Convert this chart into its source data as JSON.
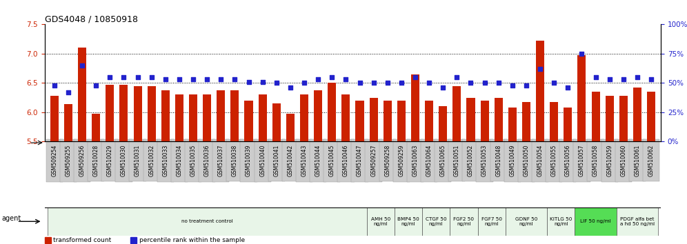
{
  "title": "GDS4048 / 10850918",
  "xlabels": [
    "GSM509254",
    "GSM509255",
    "GSM509256",
    "GSM510028",
    "GSM510029",
    "GSM510030",
    "GSM510031",
    "GSM510032",
    "GSM510033",
    "GSM510034",
    "GSM510035",
    "GSM510036",
    "GSM510037",
    "GSM510038",
    "GSM510039",
    "GSM510040",
    "GSM510041",
    "GSM510042",
    "GSM510043",
    "GSM510044",
    "GSM510045",
    "GSM510046",
    "GSM510047",
    "GSM509257",
    "GSM509258",
    "GSM509259",
    "GSM510063",
    "GSM510064",
    "GSM510065",
    "GSM510051",
    "GSM510052",
    "GSM510053",
    "GSM510048",
    "GSM510049",
    "GSM510050",
    "GSM510054",
    "GSM510055",
    "GSM510056",
    "GSM510057",
    "GSM510058",
    "GSM510059",
    "GSM510060",
    "GSM510061",
    "GSM510062"
  ],
  "bar_values": [
    6.28,
    6.14,
    7.1,
    5.98,
    6.47,
    6.47,
    6.44,
    6.44,
    6.37,
    6.3,
    6.3,
    6.3,
    6.37,
    6.37,
    6.2,
    6.3,
    6.15,
    5.97,
    6.3,
    6.37,
    6.5,
    6.3,
    6.2,
    6.25,
    6.2,
    6.2,
    6.65,
    6.2,
    6.1,
    6.44,
    6.25,
    6.2,
    6.25,
    6.08,
    6.18,
    7.22,
    6.18,
    6.08,
    6.97,
    6.35,
    6.28,
    6.28,
    6.42,
    6.35
  ],
  "percentile_values": [
    48,
    42,
    65,
    48,
    55,
    55,
    55,
    55,
    53,
    53,
    53,
    53,
    53,
    53,
    51,
    51,
    50,
    46,
    50,
    53,
    55,
    53,
    50,
    50,
    50,
    50,
    55,
    50,
    46,
    55,
    50,
    50,
    50,
    48,
    48,
    62,
    50,
    46,
    75,
    55,
    53,
    53,
    55,
    53
  ],
  "ylim_left": [
    5.5,
    7.5
  ],
  "ylim_right": [
    0,
    100
  ],
  "yticks_left": [
    5.5,
    6.0,
    6.5,
    7.0,
    7.5
  ],
  "yticks_right": [
    0,
    25,
    50,
    75,
    100
  ],
  "bar_color": "#cc2200",
  "dot_color": "#2222cc",
  "gridline_color": "#333333",
  "agent_groups": [
    {
      "label": "no treatment control",
      "start": 0,
      "end": 23,
      "color": "#e8f5e8"
    },
    {
      "label": "AMH 50\nng/ml",
      "start": 23,
      "end": 25,
      "color": "#e8f5e8"
    },
    {
      "label": "BMP4 50\nng/ml",
      "start": 25,
      "end": 27,
      "color": "#e8f5e8"
    },
    {
      "label": "CTGF 50\nng/ml",
      "start": 27,
      "end": 29,
      "color": "#e8f5e8"
    },
    {
      "label": "FGF2 50\nng/ml",
      "start": 29,
      "end": 31,
      "color": "#e8f5e8"
    },
    {
      "label": "FGF7 50\nng/ml",
      "start": 31,
      "end": 33,
      "color": "#e8f5e8"
    },
    {
      "label": "GDNF 50\nng/ml",
      "start": 33,
      "end": 36,
      "color": "#e8f5e8"
    },
    {
      "label": "KITLG 50\nng/ml",
      "start": 36,
      "end": 38,
      "color": "#e8f5e8"
    },
    {
      "label": "LIF 50 ng/ml",
      "start": 38,
      "end": 41,
      "color": "#55dd55"
    },
    {
      "label": "PDGF alfa bet\na hd 50 ng/ml",
      "start": 41,
      "end": 44,
      "color": "#e8f5e8"
    }
  ],
  "legend_items": [
    {
      "label": "transformed count",
      "color": "#cc2200"
    },
    {
      "label": "percentile rank within the sample",
      "color": "#2222cc"
    }
  ],
  "xtick_bg": "#cccccc"
}
